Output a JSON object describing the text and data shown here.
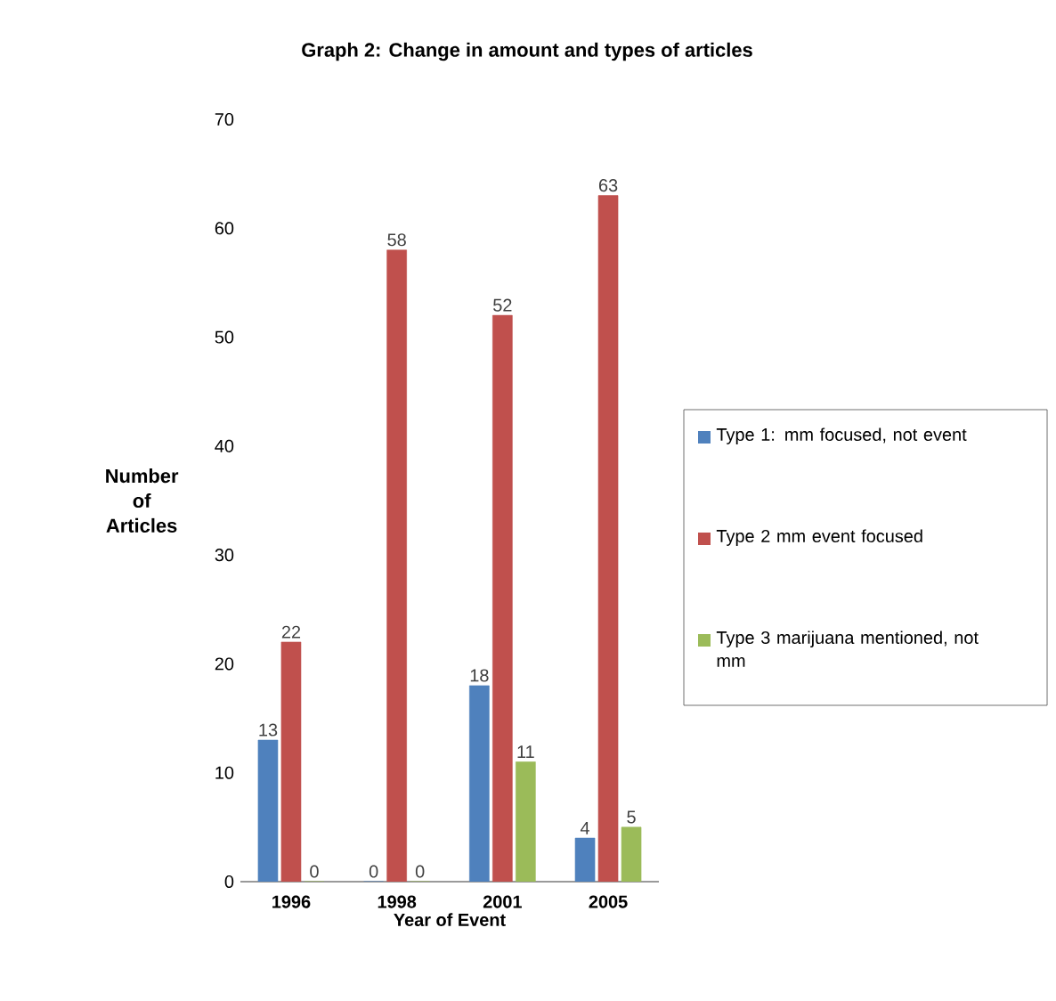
{
  "chart_data": {
    "type": "bar",
    "title": "Graph 2: Change in amount and types of articles",
    "xlabel": "Year of Event",
    "ylabel": "Number of Articles",
    "categories": [
      "1996",
      "1998",
      "2001",
      "2005"
    ],
    "series": [
      {
        "name": "Type 1: mm focused, not event",
        "color": "#4f81bd",
        "values": [
          13,
          0,
          18,
          4
        ]
      },
      {
        "name": "Type 2 mm event focused",
        "color": "#c0504d",
        "values": [
          22,
          58,
          52,
          63
        ]
      },
      {
        "name": "Type 3 marijuana mentioned, not mm",
        "color": "#9bbb59",
        "values": [
          0,
          0,
          11,
          5
        ]
      }
    ],
    "ylim": [
      0,
      70
    ],
    "yticks": [
      0,
      10,
      20,
      30,
      40,
      50,
      60,
      70
    ],
    "data_labels": true,
    "legend": "right",
    "grid": false
  }
}
